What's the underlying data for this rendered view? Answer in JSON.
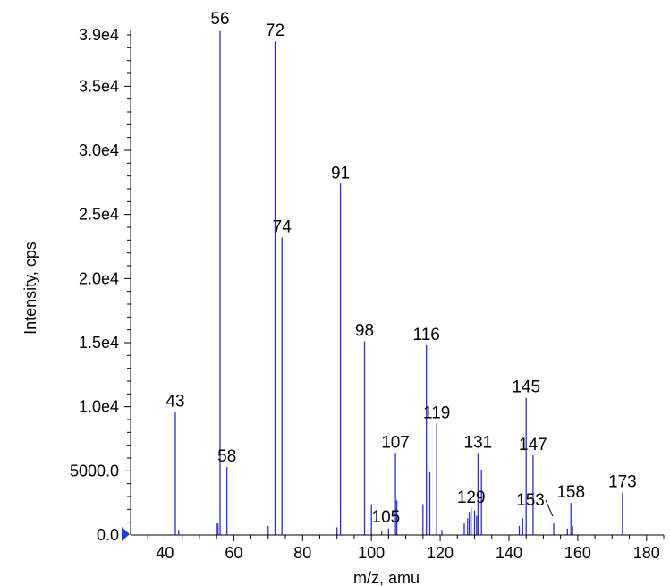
{
  "chart_data": {
    "type": "bar",
    "title": "",
    "xlabel": "m/z, amu",
    "ylabel": "Intensity, cps",
    "xlim": [
      30,
      185
    ],
    "ylim": [
      0,
      39500
    ],
    "x_ticks": [
      40,
      60,
      80,
      100,
      120,
      140,
      160,
      180
    ],
    "y_ticks": [
      {
        "value": 0,
        "label": "0.0"
      },
      {
        "value": 5000,
        "label": "5000.0"
      },
      {
        "value": 10000,
        "label": "1.0e4"
      },
      {
        "value": 15000,
        "label": "1.5e4"
      },
      {
        "value": 20000,
        "label": "2.0e4"
      },
      {
        "value": 25000,
        "label": "2.5e4"
      },
      {
        "value": 30000,
        "label": "3.0e4"
      },
      {
        "value": 35000,
        "label": "3.5e4"
      },
      {
        "value": 39000,
        "label": "3.9e4"
      }
    ],
    "color": "#2b2bd6",
    "grid": false,
    "peaks": [
      {
        "mz": 43,
        "intensity": 9600,
        "label": "43"
      },
      {
        "mz": 44,
        "intensity": 400
      },
      {
        "mz": 55,
        "intensity": 900
      },
      {
        "mz": 55.4,
        "intensity": 900
      },
      {
        "mz": 56,
        "intensity": 39300,
        "label": "56"
      },
      {
        "mz": 58,
        "intensity": 5300,
        "label": "58"
      },
      {
        "mz": 70,
        "intensity": 700
      },
      {
        "mz": 72,
        "intensity": 38500,
        "label": "72"
      },
      {
        "mz": 74,
        "intensity": 23200,
        "label": "74"
      },
      {
        "mz": 90,
        "intensity": 600
      },
      {
        "mz": 91,
        "intensity": 27400,
        "label": "91"
      },
      {
        "mz": 98,
        "intensity": 15100,
        "label": "98"
      },
      {
        "mz": 100,
        "intensity": 2400
      },
      {
        "mz": 103,
        "intensity": 300
      },
      {
        "mz": 105,
        "intensity": 500,
        "label": "105"
      },
      {
        "mz": 107,
        "intensity": 6400,
        "label": "107"
      },
      {
        "mz": 107.4,
        "intensity": 2700
      },
      {
        "mz": 115,
        "intensity": 2400
      },
      {
        "mz": 116,
        "intensity": 14800,
        "label": "116"
      },
      {
        "mz": 117,
        "intensity": 4900
      },
      {
        "mz": 119,
        "intensity": 8700,
        "label": "119"
      },
      {
        "mz": 120.5,
        "intensity": 400
      },
      {
        "mz": 127,
        "intensity": 900
      },
      {
        "mz": 128,
        "intensity": 1300
      },
      {
        "mz": 128.5,
        "intensity": 1800
      },
      {
        "mz": 129,
        "intensity": 2100,
        "label": "129"
      },
      {
        "mz": 130,
        "intensity": 1900
      },
      {
        "mz": 130.6,
        "intensity": 1500
      },
      {
        "mz": 131,
        "intensity": 6400,
        "label": "131"
      },
      {
        "mz": 132,
        "intensity": 5100
      },
      {
        "mz": 143,
        "intensity": 700
      },
      {
        "mz": 144,
        "intensity": 1300
      },
      {
        "mz": 145,
        "intensity": 10700,
        "label": "145"
      },
      {
        "mz": 147,
        "intensity": 6200,
        "label": "147"
      },
      {
        "mz": 153,
        "intensity": 900,
        "label": "153"
      },
      {
        "mz": 157,
        "intensity": 500
      },
      {
        "mz": 158,
        "intensity": 2500,
        "label": "158"
      },
      {
        "mz": 158.5,
        "intensity": 700
      },
      {
        "mz": 173,
        "intensity": 3300,
        "label": "173"
      }
    ]
  }
}
